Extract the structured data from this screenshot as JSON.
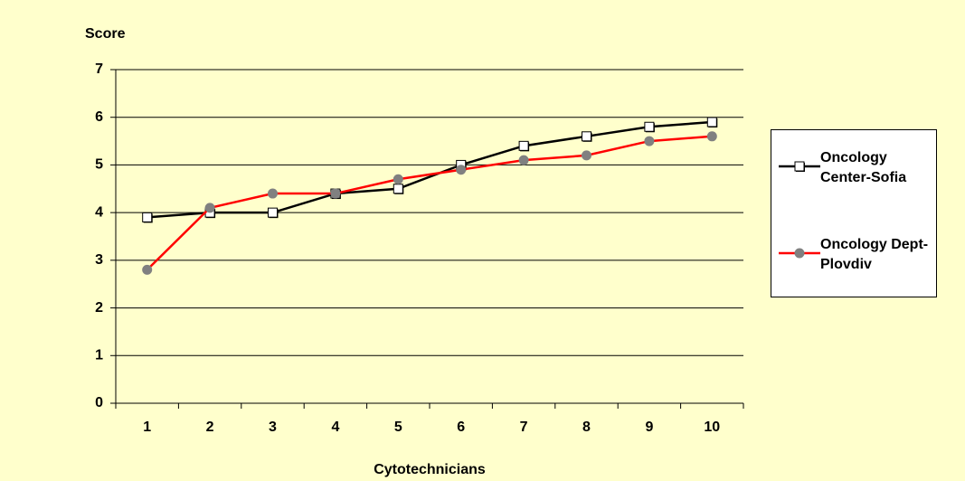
{
  "chart_data": {
    "type": "line",
    "ylabel": "Score",
    "xlabel": "Cytotechnicians",
    "categories": [
      "1",
      "2",
      "3",
      "4",
      "5",
      "6",
      "7",
      "8",
      "9",
      "10"
    ],
    "series": [
      {
        "name": "Oncology Center-Sofia",
        "color": "#000000",
        "marker": "square",
        "marker_color": "#ffffff",
        "values": [
          3.9,
          4.0,
          4.0,
          4.4,
          4.5,
          5.0,
          5.4,
          5.6,
          5.8,
          5.9
        ]
      },
      {
        "name": "Oncology Dept-Plovdiv",
        "color": "#ff0000",
        "marker": "circle",
        "marker_color": "#808080",
        "values": [
          2.8,
          4.1,
          4.4,
          4.4,
          4.7,
          4.9,
          5.1,
          5.2,
          5.5,
          5.6
        ]
      }
    ],
    "ylim": [
      0,
      7
    ],
    "yticks": [
      0,
      1,
      2,
      3,
      4,
      5,
      6,
      7
    ],
    "grid": true,
    "legend": "right"
  }
}
